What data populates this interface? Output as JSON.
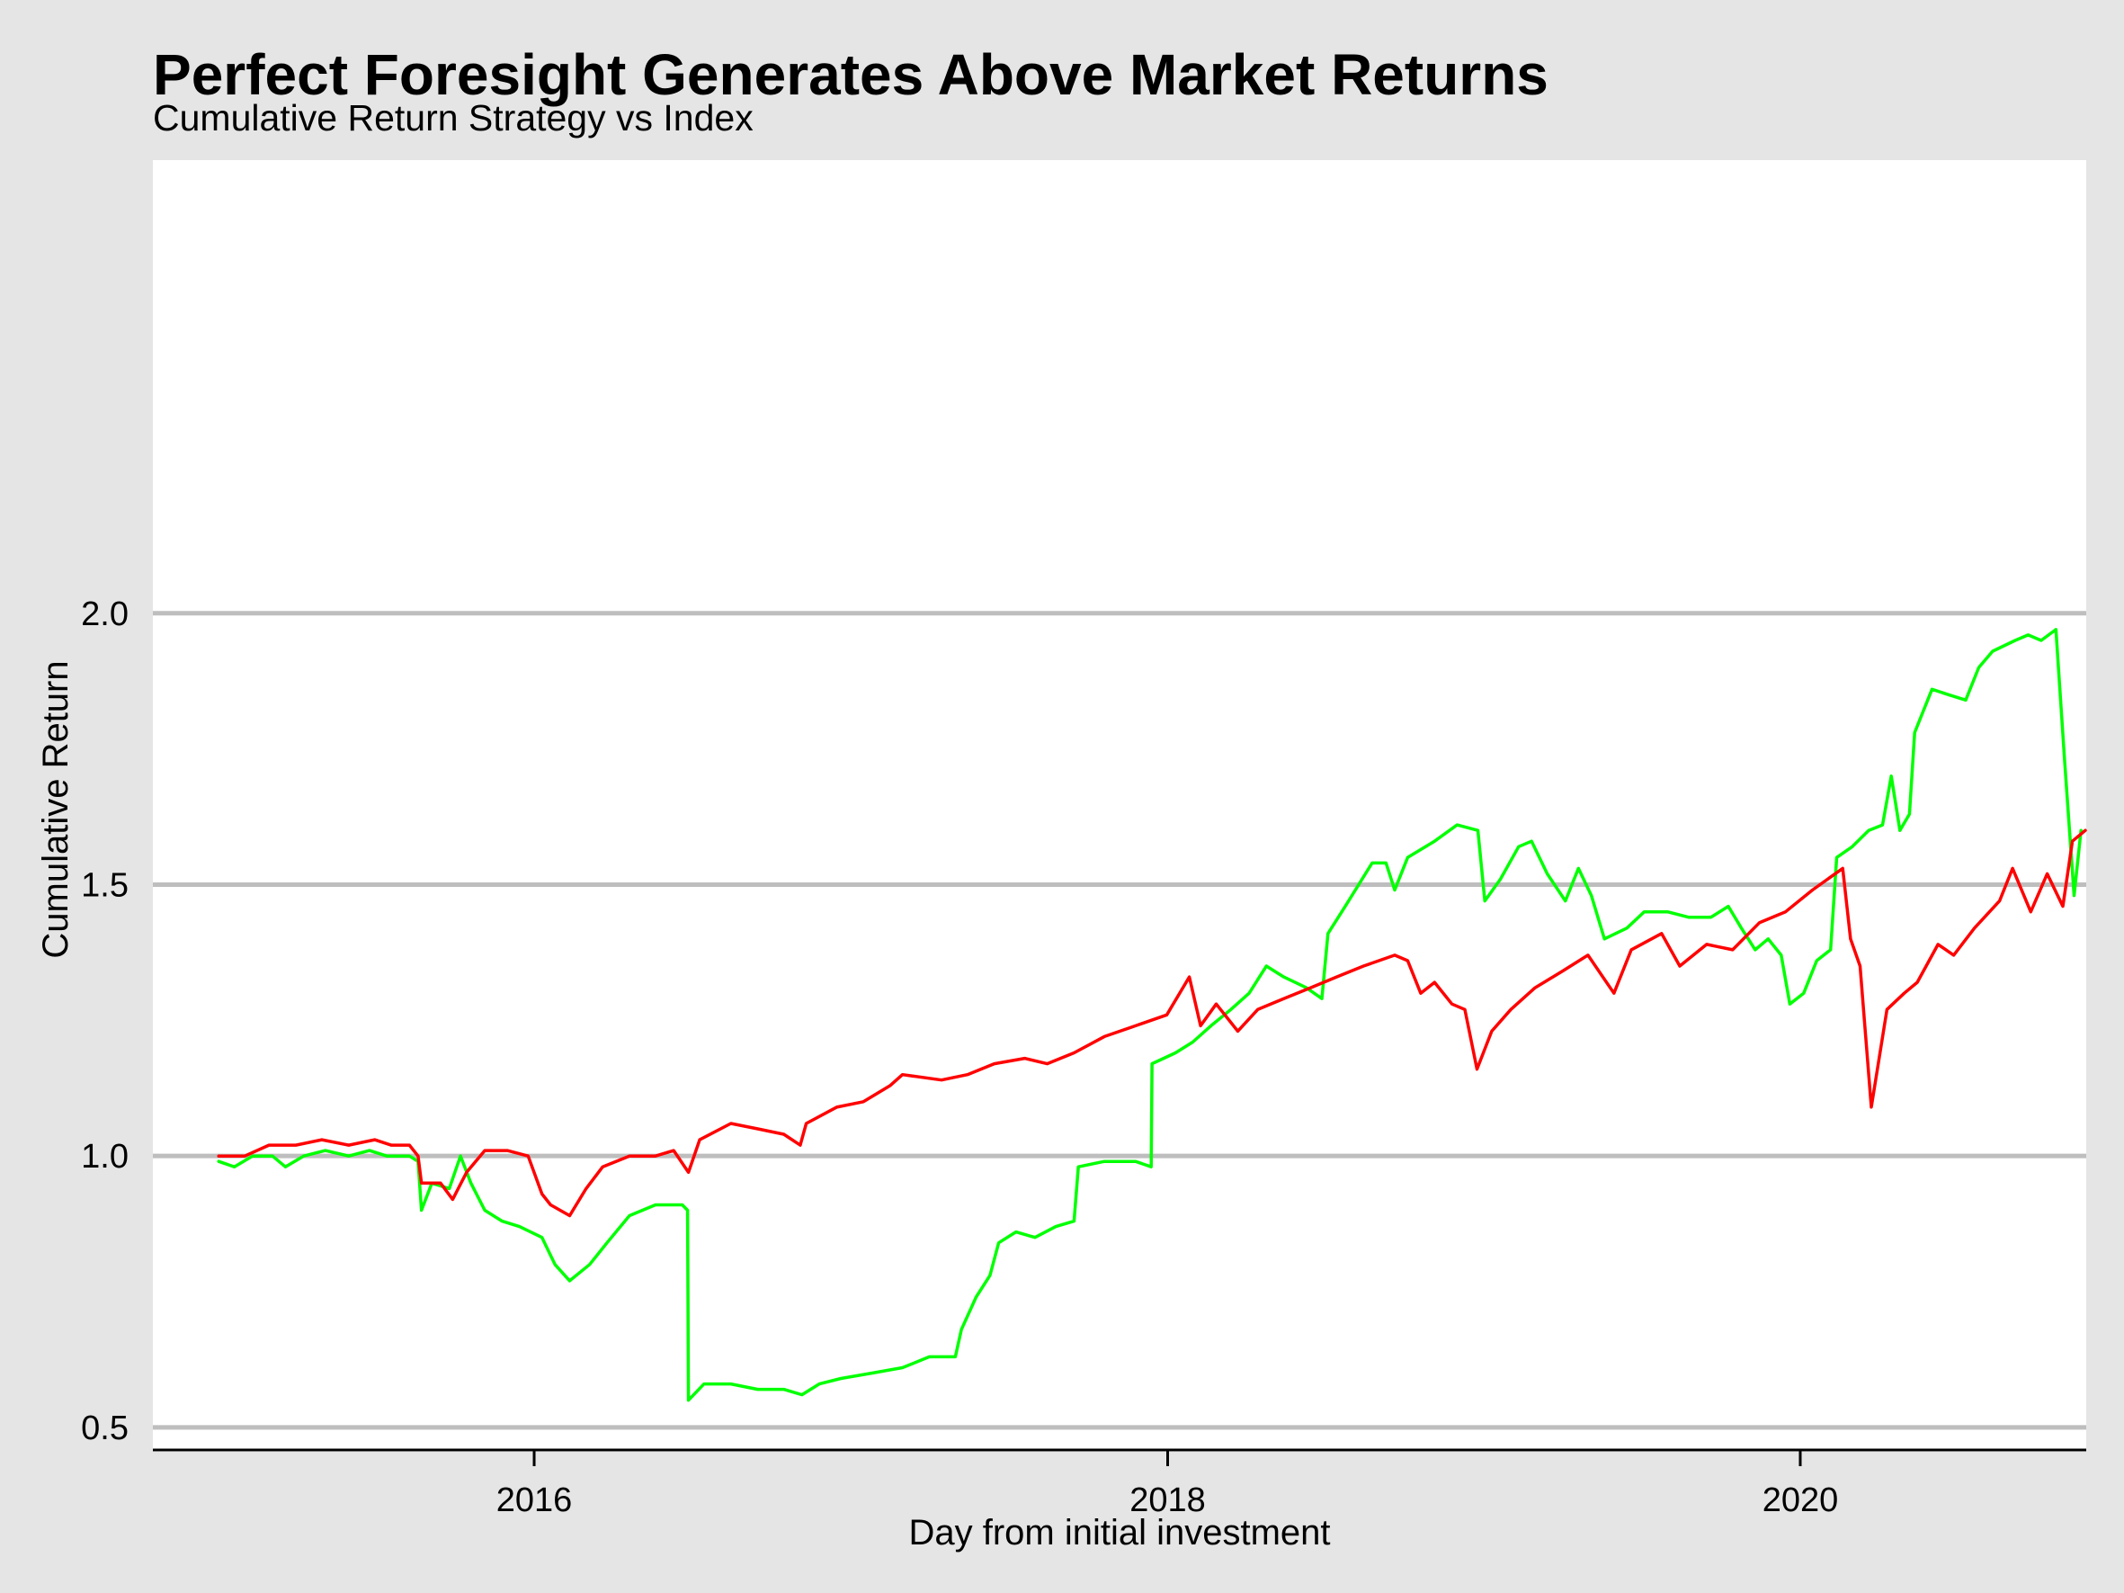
{
  "chart_data": {
    "type": "line",
    "title": "Perfect Foresight Generates Above Market Returns",
    "subtitle": "Cumulative Return Strategy vs Index",
    "xlabel": "Day from initial investment",
    "ylabel": "Cumulative Return",
    "x_ticks": [
      "2016",
      "2018",
      "2020"
    ],
    "x_tick_values": [
      "2016-01-01",
      "2018-01-01",
      "2020-01-01"
    ],
    "y_ticks": [
      "0.5",
      "1.0",
      "1.5",
      "2.0"
    ],
    "y_tick_values": [
      0.5,
      1.0,
      1.5,
      2.0
    ],
    "xlim": [
      "2014-10-18",
      "2020-11-26"
    ],
    "ylim": [
      0.455,
      2.835
    ],
    "grid": "horizontal",
    "series": [
      {
        "color": "#00ff00",
        "points": [
          [
            "2015-01-02",
            0.99
          ],
          [
            "2015-01-20",
            0.98
          ],
          [
            "2015-02-10",
            1.0
          ],
          [
            "2015-03-05",
            1.0
          ],
          [
            "2015-03-20",
            0.98
          ],
          [
            "2015-04-10",
            1.0
          ],
          [
            "2015-05-05",
            1.01
          ],
          [
            "2015-06-01",
            1.0
          ],
          [
            "2015-06-25",
            1.01
          ],
          [
            "2015-07-15",
            1.0
          ],
          [
            "2015-08-10",
            1.0
          ],
          [
            "2015-08-20",
            0.99
          ],
          [
            "2015-08-24",
            0.9
          ],
          [
            "2015-09-05",
            0.95
          ],
          [
            "2015-09-25",
            0.94
          ],
          [
            "2015-10-08",
            1.0
          ],
          [
            "2015-10-20",
            0.95
          ],
          [
            "2015-11-05",
            0.9
          ],
          [
            "2015-11-25",
            0.88
          ],
          [
            "2015-12-15",
            0.87
          ],
          [
            "2016-01-10",
            0.85
          ],
          [
            "2016-01-25",
            0.8
          ],
          [
            "2016-02-11",
            0.77
          ],
          [
            "2016-03-05",
            0.8
          ],
          [
            "2016-03-25",
            0.84
          ],
          [
            "2016-04-20",
            0.89
          ],
          [
            "2016-05-20",
            0.91
          ],
          [
            "2016-06-20",
            0.91
          ],
          [
            "2016-06-26",
            0.9
          ],
          [
            "2016-06-27",
            0.55
          ],
          [
            "2016-07-15",
            0.58
          ],
          [
            "2016-08-15",
            0.58
          ],
          [
            "2016-09-15",
            0.57
          ],
          [
            "2016-10-15",
            0.57
          ],
          [
            "2016-11-05",
            0.56
          ],
          [
            "2016-11-25",
            0.58
          ],
          [
            "2016-12-20",
            0.59
          ],
          [
            "2017-01-25",
            0.6
          ],
          [
            "2017-03-01",
            0.61
          ],
          [
            "2017-04-01",
            0.63
          ],
          [
            "2017-05-01",
            0.63
          ],
          [
            "2017-05-08",
            0.68
          ],
          [
            "2017-05-25",
            0.74
          ],
          [
            "2017-06-10",
            0.78
          ],
          [
            "2017-06-20",
            0.84
          ],
          [
            "2017-07-10",
            0.86
          ],
          [
            "2017-08-01",
            0.85
          ],
          [
            "2017-08-25",
            0.87
          ],
          [
            "2017-09-15",
            0.88
          ],
          [
            "2017-09-20",
            0.98
          ],
          [
            "2017-10-20",
            0.99
          ],
          [
            "2017-11-25",
            0.99
          ],
          [
            "2017-12-13",
            0.98
          ],
          [
            "2017-12-14",
            1.17
          ],
          [
            "2018-01-10",
            1.19
          ],
          [
            "2018-01-30",
            1.21
          ],
          [
            "2018-02-20",
            1.24
          ],
          [
            "2018-03-15",
            1.27
          ],
          [
            "2018-04-05",
            1.3
          ],
          [
            "2018-04-25",
            1.35
          ],
          [
            "2018-05-15",
            1.33
          ],
          [
            "2018-06-10",
            1.31
          ],
          [
            "2018-06-28",
            1.29
          ],
          [
            "2018-07-05",
            1.41
          ],
          [
            "2018-07-25",
            1.46
          ],
          [
            "2018-08-25",
            1.54
          ],
          [
            "2018-09-10",
            1.54
          ],
          [
            "2018-09-20",
            1.49
          ],
          [
            "2018-10-05",
            1.55
          ],
          [
            "2018-11-05",
            1.58
          ],
          [
            "2018-12-01",
            1.61
          ],
          [
            "2018-12-25",
            1.6
          ],
          [
            "2019-01-02",
            1.47
          ],
          [
            "2019-01-20",
            1.51
          ],
          [
            "2019-02-10",
            1.57
          ],
          [
            "2019-02-25",
            1.58
          ],
          [
            "2019-03-15",
            1.52
          ],
          [
            "2019-04-05",
            1.47
          ],
          [
            "2019-04-20",
            1.53
          ],
          [
            "2019-05-05",
            1.48
          ],
          [
            "2019-05-20",
            1.4
          ],
          [
            "2019-06-15",
            1.42
          ],
          [
            "2019-07-05",
            1.45
          ],
          [
            "2019-08-01",
            1.45
          ],
          [
            "2019-08-25",
            1.44
          ],
          [
            "2019-09-20",
            1.44
          ],
          [
            "2019-10-10",
            1.46
          ],
          [
            "2019-10-25",
            1.42
          ],
          [
            "2019-11-10",
            1.38
          ],
          [
            "2019-11-25",
            1.4
          ],
          [
            "2019-12-10",
            1.37
          ],
          [
            "2019-12-20",
            1.28
          ],
          [
            "2020-01-05",
            1.3
          ],
          [
            "2020-01-20",
            1.36
          ],
          [
            "2020-02-05",
            1.38
          ],
          [
            "2020-02-12",
            1.55
          ],
          [
            "2020-03-01",
            1.57
          ],
          [
            "2020-03-20",
            1.6
          ],
          [
            "2020-04-05",
            1.61
          ],
          [
            "2020-04-15",
            1.7
          ],
          [
            "2020-04-25",
            1.6
          ],
          [
            "2020-05-06",
            1.63
          ],
          [
            "2020-05-12",
            1.78
          ],
          [
            "2020-06-01",
            1.86
          ],
          [
            "2020-06-20",
            1.85
          ],
          [
            "2020-07-10",
            1.84
          ],
          [
            "2020-07-25",
            1.9
          ],
          [
            "2020-08-10",
            1.93
          ],
          [
            "2020-09-05",
            1.95
          ],
          [
            "2020-09-20",
            1.96
          ],
          [
            "2020-10-05",
            1.95
          ],
          [
            "2020-10-22",
            1.97
          ],
          [
            "2020-11-01",
            1.73
          ],
          [
            "2020-11-12",
            1.48
          ],
          [
            "2020-11-20",
            1.6
          ]
        ]
      },
      {
        "color": "#ff0000",
        "points": [
          [
            "2015-01-02",
            1.0
          ],
          [
            "2015-02-01",
            1.0
          ],
          [
            "2015-03-01",
            1.02
          ],
          [
            "2015-04-01",
            1.02
          ],
          [
            "2015-05-01",
            1.03
          ],
          [
            "2015-06-01",
            1.02
          ],
          [
            "2015-07-01",
            1.03
          ],
          [
            "2015-07-20",
            1.02
          ],
          [
            "2015-08-10",
            1.02
          ],
          [
            "2015-08-20",
            1.0
          ],
          [
            "2015-08-24",
            0.95
          ],
          [
            "2015-09-15",
            0.95
          ],
          [
            "2015-09-29",
            0.92
          ],
          [
            "2015-10-15",
            0.97
          ],
          [
            "2015-11-05",
            1.01
          ],
          [
            "2015-12-01",
            1.01
          ],
          [
            "2015-12-25",
            1.0
          ],
          [
            "2016-01-10",
            0.93
          ],
          [
            "2016-01-20",
            0.91
          ],
          [
            "2016-02-11",
            0.89
          ],
          [
            "2016-03-01",
            0.94
          ],
          [
            "2016-03-20",
            0.98
          ],
          [
            "2016-04-20",
            1.0
          ],
          [
            "2016-05-20",
            1.0
          ],
          [
            "2016-06-10",
            1.01
          ],
          [
            "2016-06-27",
            0.97
          ],
          [
            "2016-07-10",
            1.03
          ],
          [
            "2016-08-15",
            1.06
          ],
          [
            "2016-09-15",
            1.05
          ],
          [
            "2016-10-15",
            1.04
          ],
          [
            "2016-11-03",
            1.02
          ],
          [
            "2016-11-10",
            1.06
          ],
          [
            "2016-12-15",
            1.09
          ],
          [
            "2017-01-15",
            1.1
          ],
          [
            "2017-02-15",
            1.13
          ],
          [
            "2017-03-01",
            1.15
          ],
          [
            "2017-04-15",
            1.14
          ],
          [
            "2017-05-15",
            1.15
          ],
          [
            "2017-06-15",
            1.17
          ],
          [
            "2017-07-20",
            1.18
          ],
          [
            "2017-08-15",
            1.17
          ],
          [
            "2017-09-15",
            1.19
          ],
          [
            "2017-10-20",
            1.22
          ],
          [
            "2017-11-25",
            1.24
          ],
          [
            "2017-12-31",
            1.26
          ],
          [
            "2018-01-26",
            1.33
          ],
          [
            "2018-02-08",
            1.24
          ],
          [
            "2018-02-26",
            1.28
          ],
          [
            "2018-03-23",
            1.23
          ],
          [
            "2018-04-15",
            1.27
          ],
          [
            "2018-05-15",
            1.29
          ],
          [
            "2018-06-15",
            1.31
          ],
          [
            "2018-07-15",
            1.33
          ],
          [
            "2018-08-15",
            1.35
          ],
          [
            "2018-09-20",
            1.37
          ],
          [
            "2018-10-05",
            1.36
          ],
          [
            "2018-10-20",
            1.3
          ],
          [
            "2018-11-05",
            1.32
          ],
          [
            "2018-11-25",
            1.28
          ],
          [
            "2018-12-10",
            1.27
          ],
          [
            "2018-12-24",
            1.16
          ],
          [
            "2019-01-10",
            1.23
          ],
          [
            "2019-02-01",
            1.27
          ],
          [
            "2019-03-01",
            1.31
          ],
          [
            "2019-04-01",
            1.34
          ],
          [
            "2019-05-01",
            1.37
          ],
          [
            "2019-05-31",
            1.3
          ],
          [
            "2019-06-20",
            1.38
          ],
          [
            "2019-07-25",
            1.41
          ],
          [
            "2019-08-15",
            1.35
          ],
          [
            "2019-09-15",
            1.39
          ],
          [
            "2019-10-15",
            1.38
          ],
          [
            "2019-11-15",
            1.43
          ],
          [
            "2019-12-15",
            1.45
          ],
          [
            "2020-01-15",
            1.49
          ],
          [
            "2020-02-19",
            1.53
          ],
          [
            "2020-02-28",
            1.4
          ],
          [
            "2020-03-10",
            1.35
          ],
          [
            "2020-03-23",
            1.09
          ],
          [
            "2020-04-10",
            1.27
          ],
          [
            "2020-04-30",
            1.3
          ],
          [
            "2020-05-15",
            1.32
          ],
          [
            "2020-06-08",
            1.39
          ],
          [
            "2020-06-26",
            1.37
          ],
          [
            "2020-07-20",
            1.42
          ],
          [
            "2020-08-18",
            1.47
          ],
          [
            "2020-09-02",
            1.53
          ],
          [
            "2020-09-23",
            1.45
          ],
          [
            "2020-10-12",
            1.52
          ],
          [
            "2020-10-30",
            1.46
          ],
          [
            "2020-11-10",
            1.58
          ],
          [
            "2020-11-25",
            1.6
          ]
        ]
      }
    ]
  }
}
